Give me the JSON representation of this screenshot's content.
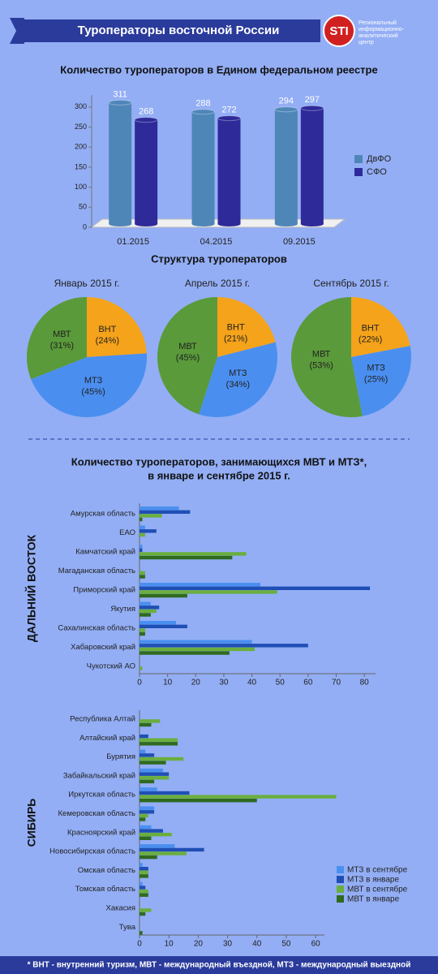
{
  "header": {
    "title": "Туроператоры восточной России",
    "logo": "STI",
    "logo_text": [
      "Региональный",
      "информационно-",
      "аналитический",
      "центр"
    ]
  },
  "section_titles": [
    "Структура туроператоров",
    [
      "Количество туроператоров, занимающихся МВТ и МТЗ*,",
      "в январе и сентябре 2015 г."
    ]
  ],
  "footnote": "* ВНТ - внутренний туризм, МВТ - международный въездной, МТЗ - международный выездной",
  "chart_data": [
    {
      "type": "bar3d",
      "title": "Количество туроператоров в Едином федеральном реестре",
      "categories": [
        "01.2015",
        "04.2015",
        "09.2015"
      ],
      "series": [
        {
          "name": "ДвФО",
          "color": "#4f86b8",
          "values": [
            311,
            288,
            294
          ]
        },
        {
          "name": "СФО",
          "color": "#2e2a99",
          "values": [
            268,
            272,
            297
          ]
        }
      ],
      "ylim": [
        0,
        330
      ],
      "yticks": [
        0,
        50,
        100,
        150,
        200,
        250,
        300
      ]
    },
    {
      "type": "pie",
      "title": "Январь 2015 г.",
      "categories": [
        "ВНТ",
        "МТЗ",
        "МВТ"
      ],
      "values": [
        24,
        45,
        31
      ],
      "value_labels": [
        "(24%)",
        "(45%)",
        "(31%)"
      ],
      "colors": [
        "#f5a31a",
        "#4a8ff0",
        "#5a9a3a"
      ]
    },
    {
      "type": "pie",
      "title": "Апрель 2015 г.",
      "categories": [
        "ВНТ",
        "МТЗ",
        "МВТ"
      ],
      "values": [
        21,
        34,
        45
      ],
      "value_labels": [
        "(21%)",
        "(34%)",
        "(45%)"
      ],
      "colors": [
        "#f5a31a",
        "#4a8ff0",
        "#5a9a3a"
      ]
    },
    {
      "type": "pie",
      "title": "Сентябрь 2015 г.",
      "categories": [
        "ВНТ",
        "МТЗ",
        "МВТ"
      ],
      "values": [
        22,
        25,
        53
      ],
      "value_labels": [
        "(22%)",
        "(25%)",
        "(53%)"
      ],
      "colors": [
        "#f5a31a",
        "#4a8ff0",
        "#5a9a3a"
      ]
    },
    {
      "type": "hbar",
      "group_label": "ДАЛЬНИЙ ВОСТОК",
      "categories": [
        "Амурская область",
        "ЕАО",
        "Камчатский край",
        "Магаданская область",
        "Приморский край",
        "Якутия",
        "Сахалинская область",
        "Хабаровский край",
        "Чукотский АО"
      ],
      "series": [
        {
          "color": "#4a8ff0",
          "values": [
            14,
            2,
            1,
            0,
            43,
            4,
            13,
            40,
            0
          ]
        },
        {
          "color": "#1f4fb5",
          "values": [
            18,
            6,
            1,
            0,
            82,
            7,
            17,
            60,
            0
          ]
        },
        {
          "color": "#6aae3e",
          "values": [
            8,
            2,
            38,
            2,
            49,
            6,
            2,
            41,
            1
          ]
        },
        {
          "color": "#2f6a1f",
          "values": [
            1,
            0,
            33,
            2,
            17,
            4,
            2,
            32,
            0
          ]
        }
      ],
      "xlim": [
        0,
        84
      ],
      "xticks": [
        0,
        10,
        20,
        30,
        40,
        50,
        60,
        70,
        80
      ]
    },
    {
      "type": "hbar",
      "group_label": "СИБИРЬ",
      "categories": [
        "Республика Алтай",
        "Алтайский край",
        "Бурятия",
        "Забайкальский край",
        "Иркутская область",
        "Кемеровская область",
        "Красноярский край",
        "Новосибирская область",
        "Омская область",
        "Томская область",
        "Хакасия",
        "Тува"
      ],
      "series": [
        {
          "name": "МТЗ в сентябре",
          "color": "#4a8ff0",
          "values": [
            0,
            0,
            2,
            8,
            6,
            5,
            4,
            12,
            1,
            1,
            0,
            0
          ]
        },
        {
          "name": "МТЗ в январе",
          "color": "#1f4fb5",
          "values": [
            0,
            3,
            5,
            10,
            17,
            5,
            8,
            22,
            3,
            2,
            0,
            0
          ]
        },
        {
          "name": "МВТ в сентябре",
          "color": "#6aae3e",
          "values": [
            7,
            13,
            15,
            10,
            67,
            3,
            11,
            16,
            3,
            3,
            4,
            0
          ]
        },
        {
          "name": "МВТ в январе",
          "color": "#2f6a1f",
          "values": [
            4,
            13,
            9,
            5,
            40,
            2,
            4,
            6,
            3,
            3,
            2,
            1
          ]
        }
      ],
      "xlim": [
        0,
        63
      ],
      "xticks": [
        0,
        10,
        20,
        30,
        40,
        50,
        60
      ],
      "legend": "bottom-right"
    }
  ]
}
